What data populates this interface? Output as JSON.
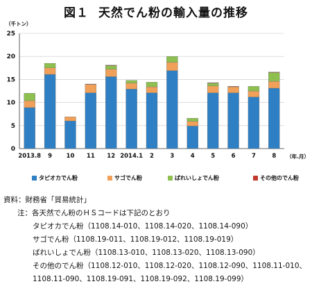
{
  "title": {
    "number": "図１",
    "text": "天然でん粉の輸入量の推移"
  },
  "chart_data": {
    "type": "bar",
    "stacked": true,
    "y_unit": "（千トン）",
    "x_unit": "（年.月）",
    "categories": [
      "2013.8",
      "9",
      "10",
      "11",
      "12",
      "2014.1",
      "2",
      "3",
      "4",
      "5",
      "6",
      "7",
      "8"
    ],
    "ylim": [
      0,
      25
    ],
    "yticks": [
      0,
      5,
      10,
      15,
      20,
      25
    ],
    "series": [
      {
        "name": "タピオカでん粉",
        "color": "#2e7fc3",
        "values": [
          8.9,
          16.1,
          6.0,
          12.1,
          15.6,
          12.9,
          12.1,
          16.9,
          4.9,
          12.1,
          12.1,
          11.2,
          13.1
        ]
      },
      {
        "name": "サゴでん粉",
        "color": "#f0a058",
        "values": [
          1.5,
          1.4,
          0.9,
          1.8,
          1.6,
          1.3,
          1.3,
          1.8,
          1.0,
          1.5,
          1.3,
          1.3,
          1.5
        ]
      },
      {
        "name": "ばれいしょでん粉",
        "color": "#8dc04f",
        "values": [
          1.6,
          1.0,
          0.0,
          0.0,
          0.8,
          0.6,
          1.0,
          1.3,
          0.7,
          0.6,
          0.0,
          1.0,
          1.9
        ]
      },
      {
        "name": "その他のでん粉",
        "color": "#c0392b",
        "values": [
          0.0,
          0.0,
          0.0,
          0.1,
          0.1,
          0.0,
          0.0,
          0.0,
          0.0,
          0.1,
          0.1,
          0.0,
          0.1
        ]
      }
    ]
  },
  "notes": {
    "source": "資料：財務省「貿易統計」",
    "note_head": "注：各天然でん粉のＨＳコードは下記のとおり",
    "tapioca": "タピオカでん粉（1108.14-010、1108.14-020、1108.14-090）",
    "sago": "サゴでん粉（1108.19-011、1108.19-012、1108.19-019）",
    "potato": "ばれいしょでん粉（1108.13-010、1108.13-020、1108.13-090）",
    "other": "その他のでん粉（1108.12-010、1108.12-020、1108.12-090、1108.11-010、",
    "other_cont": "1108.11-090、1108.19-091、1108.19-092、1108.19-099）"
  }
}
